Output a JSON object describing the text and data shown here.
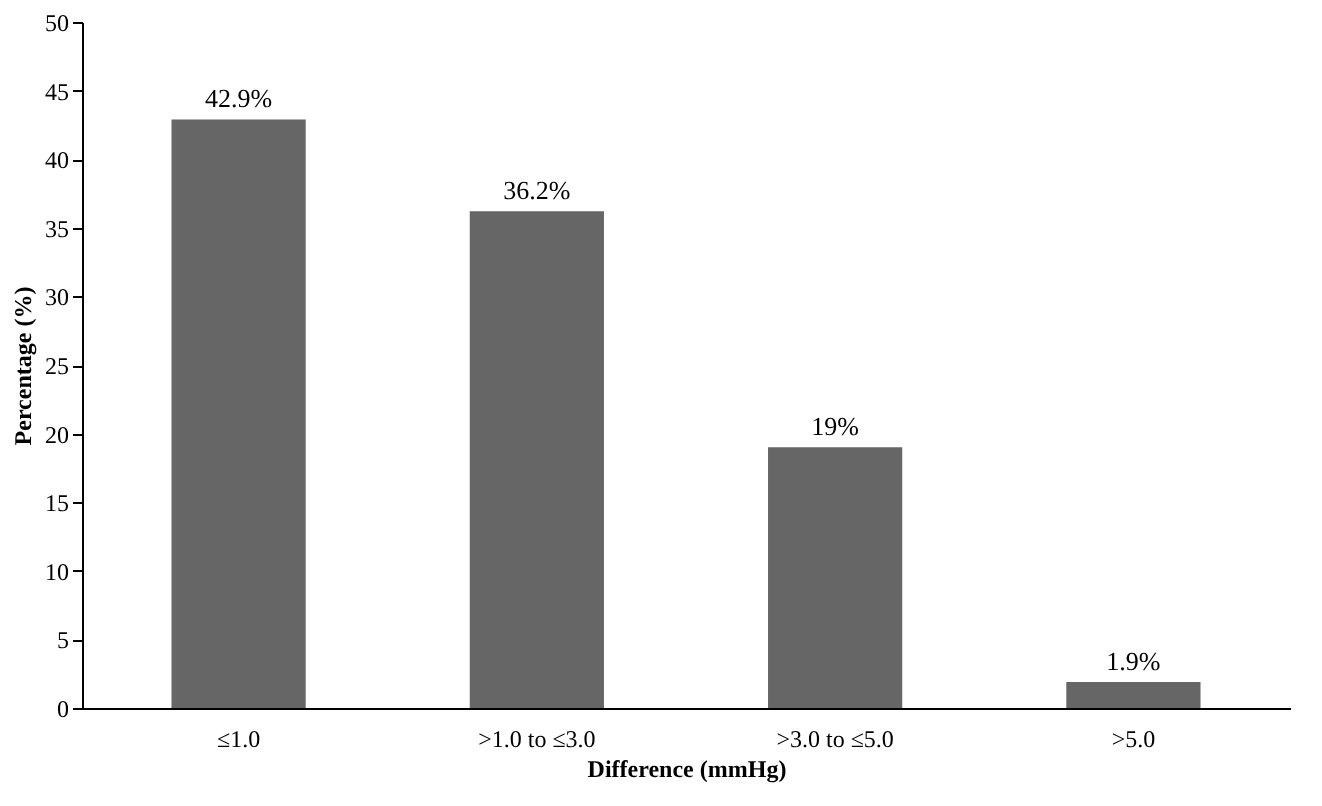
{
  "chart_data": {
    "type": "bar",
    "categories": [
      "≤1.0",
      ">1.0 to ≤3.0",
      ">3.0 to ≤5.0",
      ">5.0"
    ],
    "values": [
      42.9,
      36.2,
      19,
      1.9
    ],
    "value_labels": [
      "42.9%",
      "36.2%",
      "19%",
      "1.9%"
    ],
    "color": "#666666",
    "xlabel": "Difference (mmHg)",
    "ylabel": "Percentage (%)",
    "ylim": [
      0,
      50
    ],
    "yticks": [
      0,
      5,
      10,
      15,
      20,
      25,
      30,
      35,
      40,
      45,
      50
    ],
    "grid": false
  }
}
